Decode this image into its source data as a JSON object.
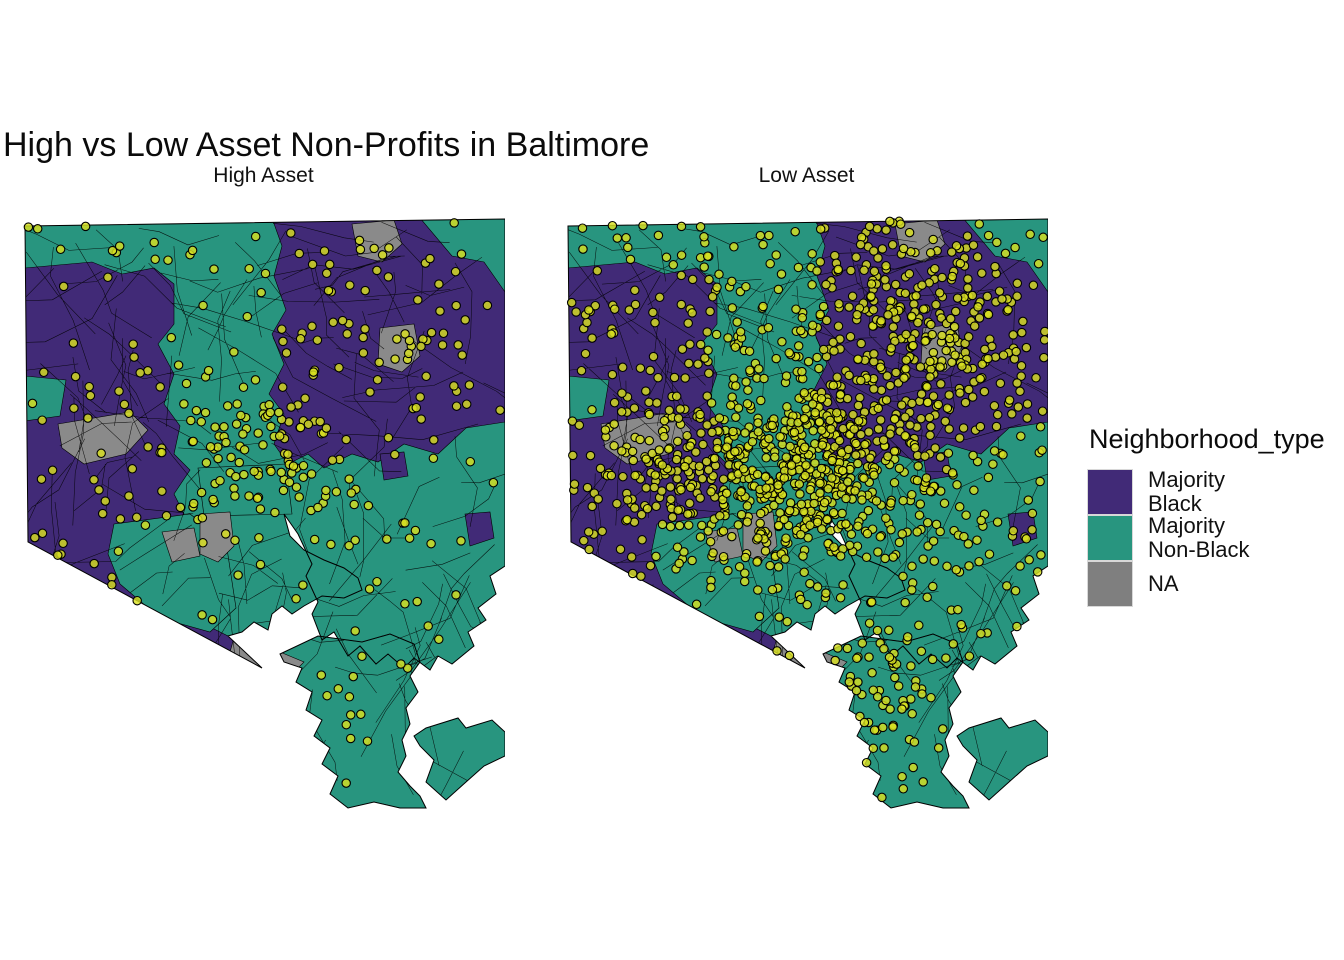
{
  "title": "High vs Low Asset Non-Profits in Baltimore",
  "facets": [
    {
      "label": "High Asset",
      "approx_points": 310
    },
    {
      "label": "Low Asset",
      "approx_points": 1420
    }
  ],
  "legend": {
    "title": "Neighborhood_type",
    "items": [
      {
        "label": "Majority Black",
        "color": "#412a77"
      },
      {
        "label": "Majority Non-Black",
        "color": "#28957f"
      },
      {
        "label": "NA",
        "color": "#7f7f7f"
      }
    ]
  },
  "colors": {
    "majority_black": "#412a77",
    "majority_non_black": "#28957f",
    "na": "#8a8a8a",
    "point_fill": "#d9e021",
    "point_stroke": "#000000",
    "tract_line": "#000000",
    "water_background": "#ffffff",
    "text": "#000000"
  },
  "chart_data": {
    "type": "choropleth_map",
    "title": "High vs Low Asset Non-Profits in Baltimore",
    "geography": "Baltimore City census tracts (Maryland)",
    "fill_variable": "Neighborhood_type",
    "fill_categories": [
      "Majority Black",
      "Majority Non-Black",
      "NA"
    ],
    "point_layer": "Non-profit locations drawn as yellow-green circles with black outline",
    "facets": [
      {
        "label": "High Asset",
        "approx_points": 310,
        "point_density": "sparse, clustered downtown and northeast"
      },
      {
        "label": "Low Asset",
        "approx_points": 1420,
        "point_density": "very dense across northern two-thirds of city"
      }
    ],
    "legend_position": "right",
    "water_shown_as": "white (Patapsco River / Inner Harbor cutout at bottom center)"
  }
}
